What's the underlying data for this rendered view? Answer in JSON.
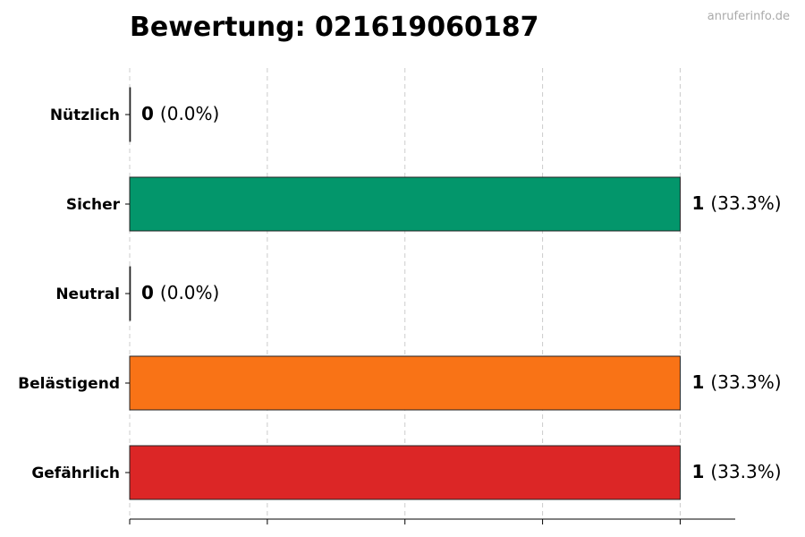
{
  "chart_data": {
    "type": "bar",
    "orientation": "horizontal",
    "title": "Bewertung: 021619060187",
    "watermark": "anruferinfo.de",
    "categories": [
      "Nützlich",
      "Sicher",
      "Neutral",
      "Belästigend",
      "Gefährlich"
    ],
    "values": [
      0,
      1,
      0,
      1,
      1
    ],
    "percent_labels": [
      "(0.0%)",
      "(33.3%)",
      "(0.0%)",
      "(33.3%)",
      "(33.3%)"
    ],
    "colors": [
      "#2a9d8f",
      "#03966b",
      "#6c757d",
      "#f97316",
      "#dc2626"
    ],
    "xlim": [
      0,
      1.1
    ],
    "x_ticks": [
      0,
      0.25,
      0.5,
      0.75,
      1.0
    ],
    "grid": "x-dashed",
    "legend": "none"
  }
}
